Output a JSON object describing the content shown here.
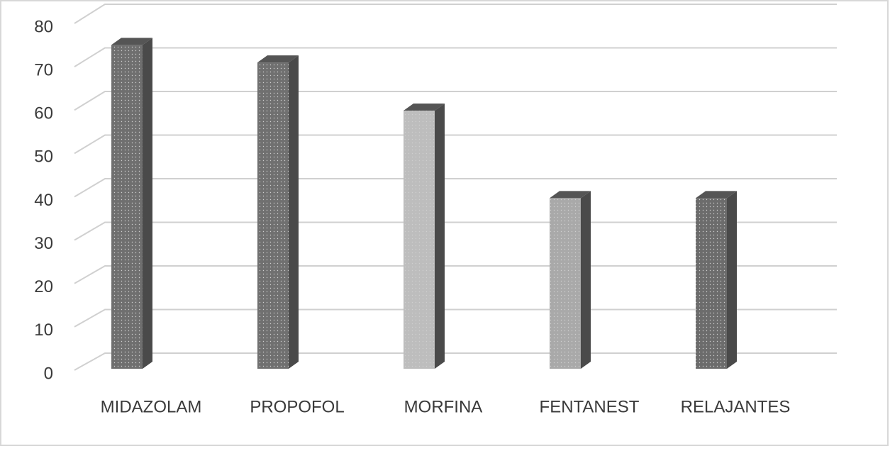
{
  "chart_data": {
    "type": "bar3d",
    "categories": [
      "MIDAZOLAM",
      "PROPOFOL",
      "MORFINA",
      "FENTANEST",
      "RELAJANTES"
    ],
    "values": [
      74,
      70,
      59,
      39,
      39
    ],
    "colors": [
      "#6f6f6f",
      "#707070",
      "#bdbdbd",
      "#a9a9a9",
      "#6c6c6c"
    ],
    "ylim": [
      0,
      80
    ],
    "yticks": [
      0,
      10,
      20,
      30,
      40,
      50,
      60,
      70,
      80
    ],
    "grid": true
  }
}
